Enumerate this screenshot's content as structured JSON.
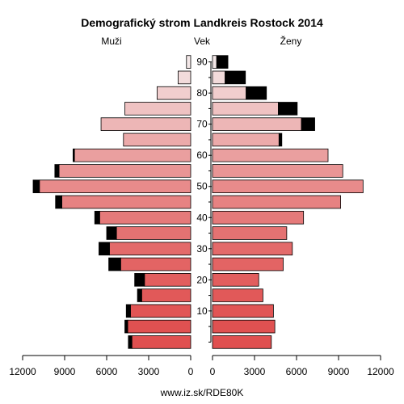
{
  "chart_data": {
    "type": "bar",
    "title": "Demografický strom Landkreis Rostock 2014",
    "left_label": "Muži",
    "center_label": "Vek",
    "right_label": "Ženy",
    "footer": "www.iz.sk/RDE80K",
    "age_groups": [
      "0-4",
      "5-9",
      "10-14",
      "15-19",
      "20-24",
      "25-29",
      "30-34",
      "35-39",
      "40-44",
      "45-49",
      "50-54",
      "55-59",
      "60-64",
      "65-69",
      "70-74",
      "75-79",
      "80-84",
      "85-89",
      "90+"
    ],
    "age_ticks": [
      "10",
      "20",
      "30",
      "40",
      "50",
      "60",
      "70",
      "80",
      "90"
    ],
    "age_tick_groups": [
      2,
      4,
      6,
      8,
      10,
      12,
      14,
      16,
      18
    ],
    "x_ticks": [
      "12000",
      "9000",
      "6000",
      "3000",
      "0",
      "0",
      "3000",
      "6000",
      "9000",
      "12000"
    ],
    "x_max": 12000,
    "men": {
      "base": [
        4200,
        4500,
        4300,
        3500,
        3300,
        5000,
        5800,
        5300,
        6500,
        9200,
        10800,
        9400,
        8300,
        4800,
        6400,
        4700,
        2400,
        900,
        300
      ],
      "surplus": [
        250,
        200,
        300,
        300,
        700,
        850,
        750,
        700,
        350,
        450,
        450,
        300,
        100,
        0,
        0,
        0,
        0,
        0,
        0
      ]
    },
    "women": {
      "base": [
        4200,
        4450,
        4350,
        3600,
        3300,
        5050,
        5700,
        5300,
        6500,
        9150,
        10750,
        9300,
        8250,
        4750,
        6350,
        4700,
        2400,
        900,
        300
      ],
      "surplus": [
        0,
        0,
        0,
        0,
        0,
        0,
        0,
        0,
        0,
        0,
        0,
        0,
        0,
        200,
        950,
        1350,
        1450,
        1450,
        800
      ]
    },
    "colors": {
      "surplus": "#000000",
      "bar_stroke": "#000000"
    }
  }
}
